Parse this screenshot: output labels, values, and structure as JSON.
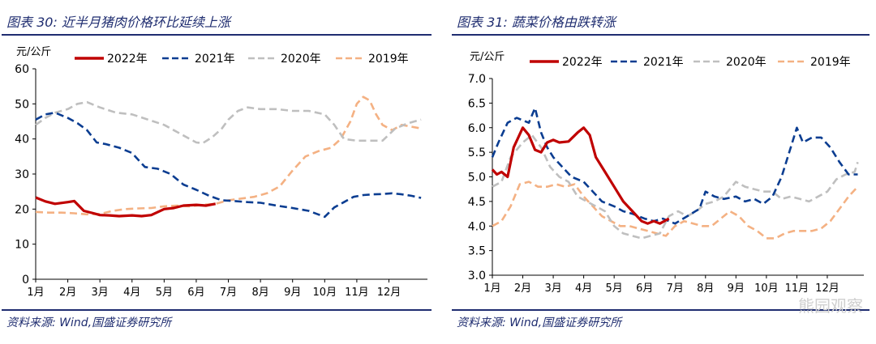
{
  "colors": {
    "title_blue": "#1f2d70",
    "s2022": "#c00000",
    "s2021": "#0b3d91",
    "s2020": "#bfbfbf",
    "s2019": "#f4b183"
  },
  "panels": {
    "left": {
      "title": "图表 30:  近半月猪肉价格环比延续上涨",
      "source": "资料来源:  Wind,国盛证券研究所"
    },
    "right": {
      "title": "图表 31:  蔬菜价格由跌转涨",
      "source": "资料来源:  Wind,国盛证券研究所"
    }
  },
  "watermark": "熊园观察",
  "chart_data": [
    {
      "id": "pork",
      "type": "line",
      "title": "近半月猪肉价格环比延续上涨",
      "ylabel": "元/公斤",
      "xlabel": "",
      "ylim": [
        0,
        60
      ],
      "yticks": [
        0,
        10,
        20,
        30,
        40,
        50,
        60
      ],
      "ytick_labels": [
        "0",
        "10",
        "20",
        "30",
        "40",
        "50",
        "60"
      ],
      "xlim": [
        1,
        13.2
      ],
      "xticks": [
        1,
        2,
        3,
        4,
        5,
        6,
        7,
        8,
        9,
        10,
        11,
        12
      ],
      "xtick_labels": [
        "1月",
        "2月",
        "3月",
        "4月",
        "5月",
        "6月",
        "7月",
        "8月",
        "9月",
        "10月",
        "11月",
        "12月"
      ],
      "grid": false,
      "legend_position": "top",
      "series": [
        {
          "name": "2022年",
          "key": "s2022",
          "style": "solid",
          "x": [
            1.0,
            1.3,
            1.6,
            2.0,
            2.2,
            2.5,
            2.8,
            3.0,
            3.3,
            3.6,
            4.0,
            4.3,
            4.6,
            5.0,
            5.3,
            5.6,
            6.0,
            6.3,
            6.6
          ],
          "y": [
            23.3,
            22.2,
            21.5,
            22.0,
            22.3,
            19.5,
            18.8,
            18.3,
            18.2,
            18.0,
            18.2,
            18.0,
            18.3,
            20.0,
            20.3,
            21.0,
            21.2,
            21.0,
            21.5
          ]
        },
        {
          "name": "2021年",
          "key": "s2021",
          "style": "dashed",
          "x": [
            1.0,
            1.3,
            1.6,
            2.0,
            2.3,
            2.6,
            2.9,
            3.2,
            3.6,
            4.0,
            4.4,
            4.8,
            5.2,
            5.6,
            6.0,
            6.4,
            6.8,
            7.2,
            7.6,
            8.0,
            8.5,
            9.0,
            9.5,
            10.0,
            10.3,
            10.6,
            10.9,
            11.2,
            11.5,
            11.8,
            12.1,
            12.4,
            12.7,
            13.0
          ],
          "y": [
            45.5,
            47.0,
            47.5,
            46.0,
            44.5,
            42.5,
            39.0,
            38.5,
            37.5,
            36.0,
            32.0,
            31.5,
            30.0,
            27.0,
            25.5,
            23.8,
            22.5,
            22.3,
            22.0,
            21.8,
            21.0,
            20.3,
            19.5,
            17.8,
            20.5,
            22.0,
            23.5,
            24.0,
            24.2,
            24.3,
            24.5,
            24.2,
            23.8,
            23.2
          ]
        },
        {
          "name": "2020年",
          "key": "s2020",
          "style": "dashed",
          "x": [
            1.0,
            1.3,
            1.6,
            2.0,
            2.3,
            2.6,
            3.0,
            3.5,
            4.0,
            4.5,
            5.0,
            5.4,
            5.8,
            6.0,
            6.2,
            6.5,
            6.8,
            7.0,
            7.3,
            7.6,
            8.0,
            8.5,
            9.0,
            9.5,
            10.0,
            10.3,
            10.6,
            11.0,
            11.4,
            11.8,
            12.2,
            12.6,
            13.0
          ],
          "y": [
            44.0,
            46.0,
            47.5,
            48.5,
            50.0,
            50.5,
            49.0,
            47.5,
            47.0,
            45.5,
            44.0,
            42.0,
            40.0,
            39.0,
            38.8,
            40.5,
            43.0,
            45.5,
            48.0,
            49.0,
            48.5,
            48.5,
            48.0,
            48.0,
            47.0,
            44.0,
            40.0,
            39.5,
            39.5,
            39.5,
            43.0,
            44.5,
            45.5
          ]
        },
        {
          "name": "2019年",
          "key": "s2019",
          "style": "dashed",
          "x": [
            1.0,
            1.4,
            1.8,
            2.2,
            2.6,
            3.0,
            3.4,
            3.8,
            4.2,
            4.6,
            5.0,
            5.4,
            5.8,
            6.2,
            6.6,
            7.0,
            7.4,
            7.8,
            8.2,
            8.6,
            9.0,
            9.4,
            9.8,
            10.2,
            10.5,
            10.8,
            11.0,
            11.2,
            11.4,
            11.6,
            11.8,
            12.1,
            12.4,
            12.7,
            13.0
          ],
          "y": [
            19.2,
            19.0,
            19.0,
            18.8,
            18.5,
            18.6,
            19.5,
            20.0,
            20.2,
            20.3,
            20.8,
            21.0,
            20.8,
            21.2,
            21.5,
            22.5,
            23.0,
            23.5,
            24.5,
            26.5,
            31.0,
            35.0,
            36.5,
            37.5,
            40.0,
            45.0,
            50.0,
            52.0,
            51.0,
            47.0,
            44.0,
            42.5,
            44.0,
            43.5,
            43.0
          ]
        }
      ]
    },
    {
      "id": "vegetable",
      "type": "line",
      "title": "蔬菜价格由跌转涨",
      "ylabel": "元/公斤",
      "xlabel": "",
      "ylim": [
        3.0,
        7.0
      ],
      "yticks": [
        3.0,
        3.5,
        4.0,
        4.5,
        5.0,
        5.5,
        6.0,
        6.5,
        7.0
      ],
      "ytick_labels": [
        "3.0",
        "3.5",
        "4.0",
        "4.5",
        "5.0",
        "5.5",
        "6.0",
        "6.5",
        "7.0"
      ],
      "xlim": [
        1,
        13.2
      ],
      "xticks": [
        1,
        2,
        3,
        4,
        5,
        6,
        7,
        8,
        9,
        10,
        11,
        12
      ],
      "xtick_labels": [
        "1月",
        "2月",
        "3月",
        "4月",
        "5月",
        "6月",
        "7月",
        "8月",
        "9月",
        "10月",
        "11月",
        "12月"
      ],
      "grid": false,
      "legend_position": "top",
      "series": [
        {
          "name": "2022年",
          "key": "s2022",
          "style": "solid",
          "x": [
            1.0,
            1.15,
            1.3,
            1.5,
            1.7,
            2.0,
            2.2,
            2.4,
            2.6,
            2.8,
            3.0,
            3.2,
            3.5,
            3.8,
            4.0,
            4.2,
            4.4,
            4.7,
            5.0,
            5.3,
            5.6,
            5.9,
            6.1,
            6.3,
            6.5,
            6.8
          ],
          "y": [
            5.15,
            5.05,
            5.1,
            5.0,
            5.6,
            6.0,
            5.85,
            5.55,
            5.5,
            5.7,
            5.75,
            5.7,
            5.72,
            5.9,
            6.0,
            5.85,
            5.4,
            5.1,
            4.8,
            4.5,
            4.3,
            4.1,
            4.05,
            4.1,
            4.05,
            4.15
          ]
        },
        {
          "name": "2021年",
          "key": "s2021",
          "style": "dashed",
          "x": [
            1.0,
            1.2,
            1.5,
            1.8,
            2.0,
            2.2,
            2.4,
            2.6,
            2.8,
            3.0,
            3.3,
            3.6,
            4.0,
            4.3,
            4.6,
            5.0,
            5.3,
            5.6,
            6.0,
            6.3,
            6.6,
            7.0,
            7.4,
            7.8,
            8.0,
            8.3,
            8.6,
            9.0,
            9.3,
            9.6,
            9.9,
            10.2,
            10.5,
            10.8,
            11.0,
            11.2,
            11.5,
            11.8,
            12.1,
            12.4,
            12.7,
            13.0
          ],
          "y": [
            5.4,
            5.7,
            6.1,
            6.2,
            6.15,
            6.1,
            6.4,
            5.9,
            5.6,
            5.4,
            5.2,
            5.0,
            4.9,
            4.7,
            4.5,
            4.4,
            4.3,
            4.25,
            4.15,
            4.1,
            4.15,
            4.05,
            4.2,
            4.35,
            4.7,
            4.6,
            4.55,
            4.6,
            4.5,
            4.55,
            4.45,
            4.6,
            5.0,
            5.6,
            6.0,
            5.7,
            5.8,
            5.8,
            5.6,
            5.3,
            5.05,
            5.05
          ]
        },
        {
          "name": "2020年",
          "key": "s2020",
          "style": "dashed",
          "x": [
            1.0,
            1.3,
            1.6,
            2.0,
            2.3,
            2.6,
            2.9,
            3.2,
            3.5,
            3.8,
            4.1,
            4.4,
            4.7,
            5.0,
            5.3,
            5.6,
            5.9,
            6.2,
            6.5,
            6.8,
            7.1,
            7.4,
            7.7,
            8.0,
            8.3,
            8.6,
            9.0,
            9.3,
            9.6,
            9.9,
            10.2,
            10.5,
            10.8,
            11.1,
            11.4,
            11.7,
            12.0,
            12.3,
            12.6,
            12.9,
            13.0
          ],
          "y": [
            4.8,
            4.9,
            5.4,
            5.7,
            5.85,
            5.6,
            5.2,
            5.0,
            4.9,
            4.6,
            4.5,
            4.4,
            4.3,
            4.0,
            3.85,
            3.8,
            3.75,
            3.8,
            3.85,
            4.2,
            4.3,
            4.2,
            4.3,
            4.45,
            4.5,
            4.6,
            4.9,
            4.8,
            4.75,
            4.7,
            4.7,
            4.55,
            4.6,
            4.55,
            4.5,
            4.6,
            4.7,
            4.95,
            5.05,
            5.1,
            5.3
          ]
        },
        {
          "name": "2019年",
          "key": "s2019",
          "style": "dashed",
          "x": [
            1.0,
            1.3,
            1.6,
            1.9,
            2.2,
            2.5,
            2.8,
            3.1,
            3.4,
            3.7,
            4.0,
            4.3,
            4.6,
            4.9,
            5.2,
            5.5,
            5.8,
            6.1,
            6.4,
            6.7,
            7.0,
            7.3,
            7.6,
            7.9,
            8.2,
            8.5,
            8.8,
            9.1,
            9.4,
            9.7,
            10.0,
            10.3,
            10.6,
            10.9,
            11.2,
            11.5,
            11.8,
            12.1,
            12.4,
            12.7,
            13.0
          ],
          "y": [
            4.0,
            4.1,
            4.4,
            4.85,
            4.9,
            4.8,
            4.8,
            4.85,
            4.8,
            4.85,
            4.6,
            4.4,
            4.2,
            4.1,
            4.0,
            4.0,
            3.95,
            3.9,
            3.85,
            3.8,
            4.0,
            4.1,
            4.05,
            4.0,
            4.0,
            4.15,
            4.3,
            4.2,
            4.0,
            3.9,
            3.75,
            3.75,
            3.85,
            3.9,
            3.9,
            3.9,
            3.95,
            4.1,
            4.35,
            4.6,
            4.8
          ]
        }
      ]
    }
  ]
}
